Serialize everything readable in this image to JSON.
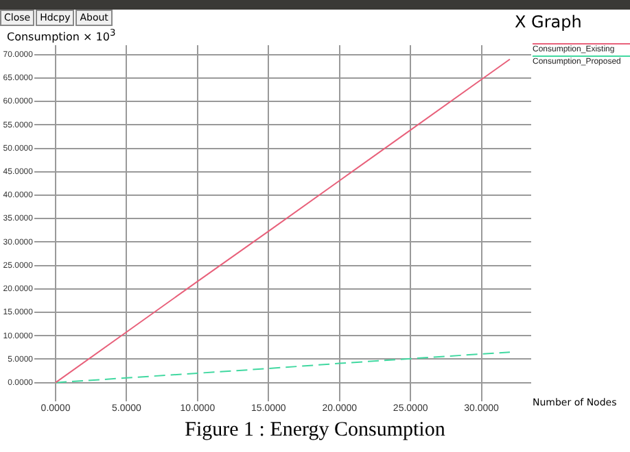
{
  "chart_data": {
    "type": "line",
    "title": "X Graph",
    "xlabel": "Number of Nodes",
    "ylabel": "Consumption × 10$^{3}$",
    "annotations": [
      "Close",
      "Hdcpy",
      "About",
      "Figure 1 :  Energy  Consumption"
    ],
    "x": [
      0,
      5,
      10,
      15,
      20,
      25,
      30,
      32
    ],
    "series": [
      {
        "name": "Consumption_Existing",
        "color": "#e8607a",
        "line_style": "solid",
        "values": [
          0,
          10.8,
          21.6,
          32.3,
          43.1,
          53.9,
          64.7,
          69
        ]
      },
      {
        "name": "Consumption_Proposed",
        "color": "#40d8a0",
        "line_style": "dashed",
        "values": [
          0,
          1.0,
          2.0,
          3.0,
          4.1,
          5.1,
          6.1,
          6.5
        ]
      }
    ],
    "xlim": [
      -1.5,
      33.5
    ],
    "ylim": [
      -4,
      72
    ],
    "xticks": [
      {
        "value": 0,
        "label": "0.0000"
      },
      {
        "value": 5,
        "label": "5.0000"
      },
      {
        "value": 10,
        "label": "10.0000"
      },
      {
        "value": 15,
        "label": "15.0000"
      },
      {
        "value": 20,
        "label": "20.0000"
      },
      {
        "value": 25,
        "label": "25.0000"
      },
      {
        "value": 30,
        "label": "30.0000"
      }
    ],
    "yticks": [
      {
        "value": 0,
        "label": "0.0000"
      },
      {
        "value": 5,
        "label": "5.0000"
      },
      {
        "value": 10,
        "label": "10.0000"
      },
      {
        "value": 15,
        "label": "15.0000"
      },
      {
        "value": 20,
        "label": "20.0000"
      },
      {
        "value": 25,
        "label": "25.0000"
      },
      {
        "value": 30,
        "label": "30.0000"
      },
      {
        "value": 35,
        "label": "35.0000"
      },
      {
        "value": 40,
        "label": "40.0000"
      },
      {
        "value": 45,
        "label": "45.0000"
      },
      {
        "value": 50,
        "label": "50.0000"
      },
      {
        "value": 55,
        "label": "55.0000"
      },
      {
        "value": 60,
        "label": "60.0000"
      },
      {
        "value": 65,
        "label": "65.0000"
      },
      {
        "value": 70,
        "label": "70.0000"
      }
    ],
    "grid": true,
    "legend": "top right",
    "marker": "none"
  }
}
